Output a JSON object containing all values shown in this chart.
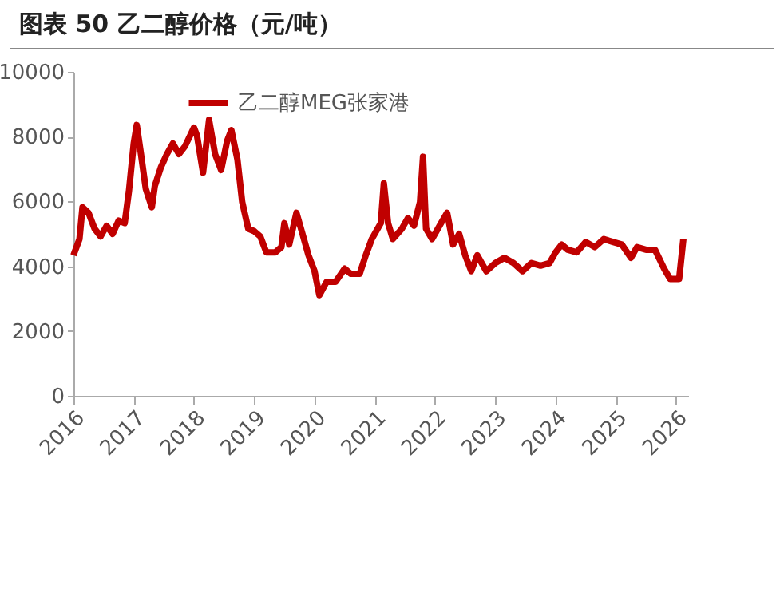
{
  "chart_data": {
    "type": "line",
    "title": "图表 50 乙二醇价格（元/吨）",
    "x": [
      2016.0,
      2016.1,
      2016.15,
      2016.25,
      2016.35,
      2016.45,
      2016.55,
      2016.65,
      2016.75,
      2016.85,
      2016.92,
      2017.0,
      2017.05,
      2017.12,
      2017.2,
      2017.3,
      2017.35,
      2017.45,
      2017.55,
      2017.65,
      2017.75,
      2017.85,
      2018.0,
      2018.05,
      2018.15,
      2018.25,
      2018.35,
      2018.45,
      2018.55,
      2018.62,
      2018.72,
      2018.8,
      2018.9,
      2019.0,
      2019.1,
      2019.2,
      2019.35,
      2019.45,
      2019.5,
      2019.58,
      2019.7,
      2019.8,
      2019.9,
      2020.0,
      2020.08,
      2020.2,
      2020.35,
      2020.5,
      2020.6,
      2020.75,
      2020.85,
      2020.95,
      2021.1,
      2021.15,
      2021.22,
      2021.3,
      2021.45,
      2021.55,
      2021.65,
      2021.75,
      2021.8,
      2021.85,
      2021.95,
      2022.1,
      2022.2,
      2022.3,
      2022.4,
      2022.5,
      2022.6,
      2022.7,
      2022.85,
      2023.0,
      2023.15,
      2023.3,
      2023.45,
      2023.6,
      2023.75,
      2023.9,
      2024.0,
      2024.1,
      2024.2,
      2024.35,
      2024.5,
      2024.65,
      2024.8,
      2024.95,
      2025.1,
      2025.25,
      2025.35,
      2025.5,
      2025.65,
      2025.8,
      2025.9,
      2026.05,
      2026.12
    ],
    "series": [
      {
        "name": "乙二醇MEG张家港",
        "color": "#c00000",
        "values": [
          4340,
          4840,
          5820,
          5650,
          5160,
          4920,
          5250,
          5000,
          5410,
          5330,
          6310,
          7790,
          8360,
          7460,
          6390,
          5820,
          6480,
          7050,
          7460,
          7790,
          7460,
          7700,
          8280,
          8030,
          6890,
          8520,
          7460,
          6970,
          7870,
          8200,
          7300,
          5980,
          5160,
          5080,
          4920,
          4430,
          4430,
          4590,
          5330,
          4670,
          5650,
          5000,
          4340,
          3850,
          3110,
          3520,
          3520,
          3930,
          3770,
          3770,
          4340,
          4840,
          5330,
          6560,
          5330,
          4840,
          5160,
          5490,
          5250,
          5980,
          7380,
          5160,
          4840,
          5330,
          5650,
          4670,
          5000,
          4340,
          3850,
          4340,
          3850,
          4100,
          4260,
          4100,
          3850,
          4100,
          4020,
          4100,
          4430,
          4670,
          4510,
          4430,
          4750,
          4590,
          4840,
          4750,
          4670,
          4260,
          4590,
          4510,
          4510,
          3930,
          3610,
          3610,
          4840
        ]
      }
    ],
    "xlim": [
      2016,
      2026.2
    ],
    "xticks": [
      2016,
      2017,
      2018,
      2019,
      2020,
      2021,
      2022,
      2023,
      2024,
      2025,
      2026
    ],
    "ylim": [
      0,
      10000
    ],
    "yticks": [
      0,
      2000,
      4000,
      6000,
      8000,
      10000
    ],
    "grid": false,
    "legend": "top",
    "marker": "none",
    "line_style": "solid"
  }
}
